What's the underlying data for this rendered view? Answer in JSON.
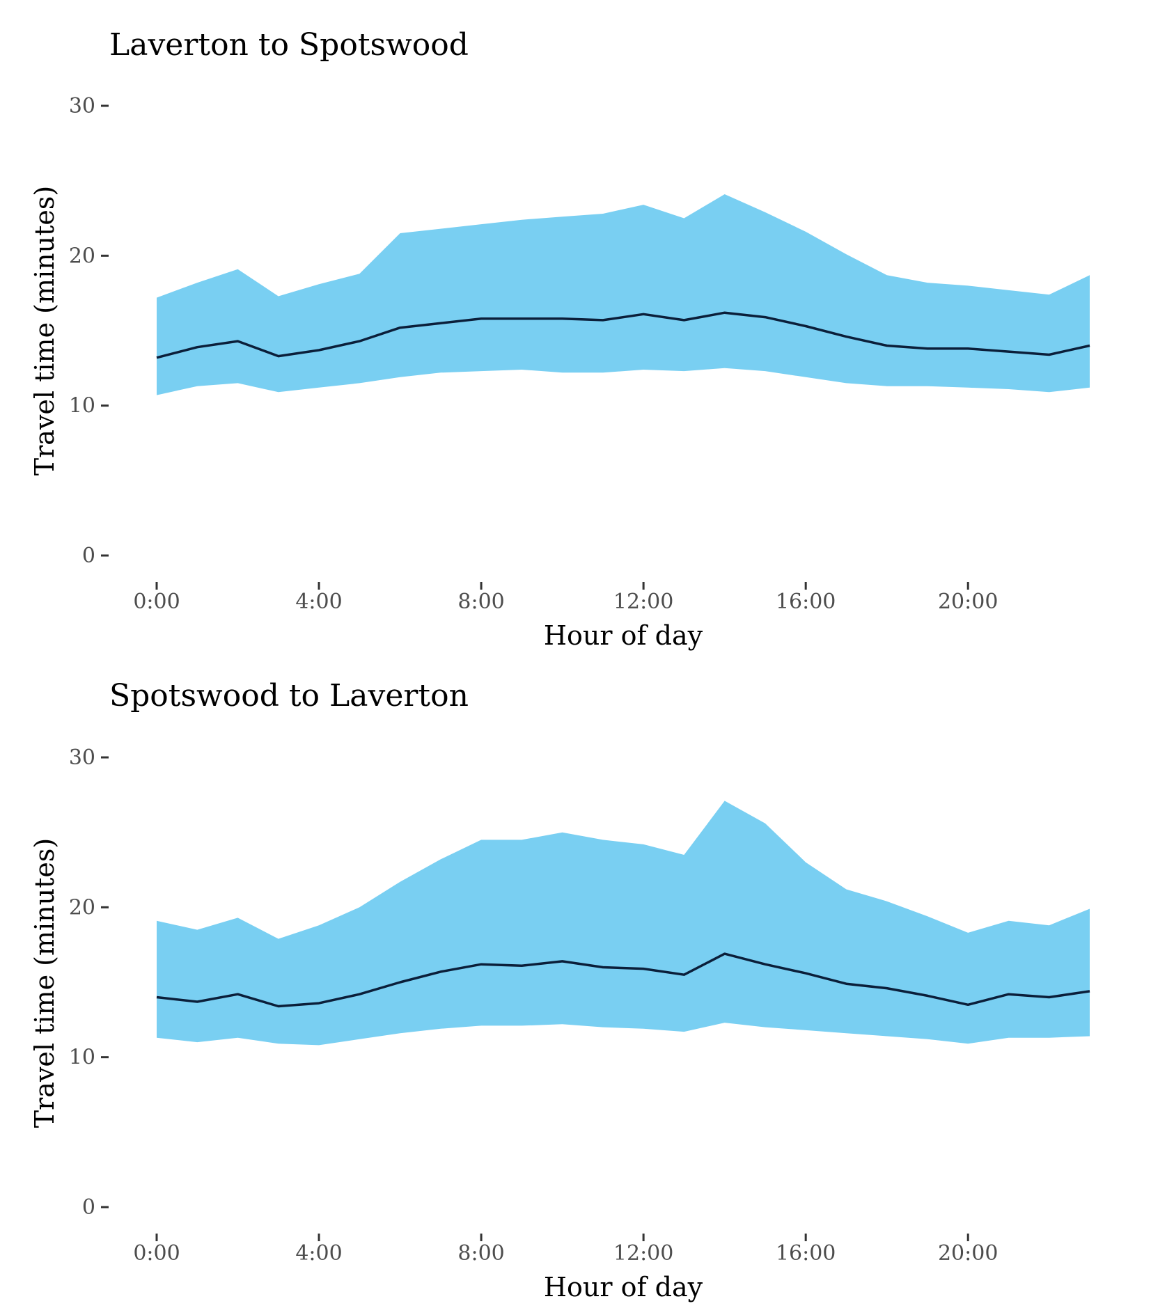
{
  "chart_data": [
    {
      "type": "area",
      "title": "Laverton to Spotswood",
      "xlabel": "Hour of day",
      "ylabel": "Travel time (minutes)",
      "ylim": [
        0,
        30
      ],
      "yticks": [
        0,
        10,
        20,
        30
      ],
      "xlim": [
        0,
        23
      ],
      "xticks": [
        0,
        4,
        8,
        12,
        16,
        20
      ],
      "xtick_labels": [
        "0:00",
        "4:00",
        "8:00",
        "12:00",
        "16:00",
        "20:00"
      ],
      "grid": false,
      "band_color": "#79cff2",
      "line_color": "#0b1f3a",
      "x": [
        0,
        1,
        2,
        3,
        4,
        5,
        6,
        7,
        8,
        9,
        10,
        11,
        12,
        13,
        14,
        15,
        16,
        17,
        18,
        19,
        20,
        21,
        22,
        23
      ],
      "upper": [
        17.2,
        18.2,
        19.1,
        17.3,
        18.1,
        18.8,
        21.5,
        21.8,
        22.1,
        22.4,
        22.6,
        22.8,
        23.4,
        22.5,
        24.1,
        22.9,
        21.6,
        20.1,
        18.7,
        18.2,
        18.0,
        17.7,
        17.4,
        18.7
      ],
      "median": [
        13.2,
        13.9,
        14.3,
        13.3,
        13.7,
        14.3,
        15.2,
        15.5,
        15.8,
        15.8,
        15.8,
        15.7,
        16.1,
        15.7,
        16.2,
        15.9,
        15.3,
        14.6,
        14.0,
        13.8,
        13.8,
        13.6,
        13.4,
        14.0
      ],
      "lower": [
        10.7,
        11.3,
        11.5,
        10.9,
        11.2,
        11.5,
        11.9,
        12.2,
        12.3,
        12.4,
        12.2,
        12.2,
        12.4,
        12.3,
        12.5,
        12.3,
        11.9,
        11.5,
        11.3,
        11.3,
        11.2,
        11.1,
        10.9,
        11.2
      ]
    },
    {
      "type": "area",
      "title": "Spotswood to Laverton",
      "xlabel": "Hour of day",
      "ylabel": "Travel time (minutes)",
      "ylim": [
        0,
        30
      ],
      "yticks": [
        0,
        10,
        20,
        30
      ],
      "xlim": [
        0,
        23
      ],
      "xticks": [
        0,
        4,
        8,
        12,
        16,
        20
      ],
      "xtick_labels": [
        "0:00",
        "4:00",
        "8:00",
        "12:00",
        "16:00",
        "20:00"
      ],
      "grid": false,
      "band_color": "#79cff2",
      "line_color": "#0b1f3a",
      "x": [
        0,
        1,
        2,
        3,
        4,
        5,
        6,
        7,
        8,
        9,
        10,
        11,
        12,
        13,
        14,
        15,
        16,
        17,
        18,
        19,
        20,
        21,
        22,
        23
      ],
      "upper": [
        19.1,
        18.5,
        19.3,
        17.9,
        18.8,
        20.0,
        21.7,
        23.2,
        24.5,
        24.5,
        25.0,
        24.5,
        24.2,
        23.5,
        27.1,
        25.6,
        23.0,
        21.2,
        20.4,
        19.4,
        18.3,
        19.1,
        18.8,
        19.9
      ],
      "median": [
        14.0,
        13.7,
        14.2,
        13.4,
        13.6,
        14.2,
        15.0,
        15.7,
        16.2,
        16.1,
        16.4,
        16.0,
        15.9,
        15.5,
        16.9,
        16.2,
        15.6,
        14.9,
        14.6,
        14.1,
        13.5,
        14.2,
        14.0,
        14.4
      ],
      "lower": [
        11.3,
        11.0,
        11.3,
        10.9,
        10.8,
        11.2,
        11.6,
        11.9,
        12.1,
        12.1,
        12.2,
        12.0,
        11.9,
        11.7,
        12.3,
        12.0,
        11.8,
        11.6,
        11.4,
        11.2,
        10.9,
        11.3,
        11.3,
        11.4
      ]
    }
  ]
}
